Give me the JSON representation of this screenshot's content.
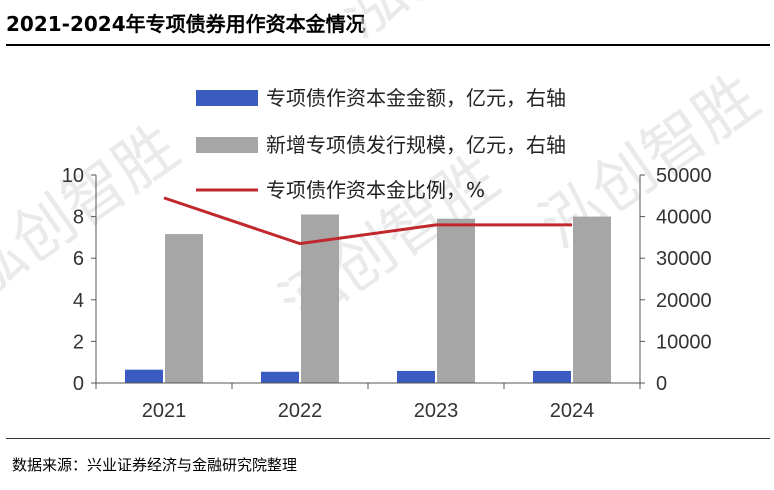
{
  "title": "2021-2024年专项债券用作资本金情况",
  "source": "数据来源：兴业证券经济与金融研究院整理",
  "watermark": "泓创智胜",
  "chart_data": {
    "type": "bar",
    "categories": [
      "2021",
      "2022",
      "2023",
      "2024"
    ],
    "left_axis": {
      "ylim": [
        0,
        10
      ],
      "ticks": [
        "0",
        "2",
        "4",
        "6",
        "8",
        "10"
      ]
    },
    "right_axis": {
      "ylim": [
        0,
        50000
      ],
      "ticks": [
        "0",
        "10000",
        "20000",
        "30000",
        "40000",
        "50000"
      ]
    },
    "series": [
      {
        "name": "专项债作资本金金额，亿元，右轴",
        "type": "bar",
        "axis": "right",
        "color": "#3a5bbf",
        "values": [
          3200,
          2700,
          2900,
          2900
        ]
      },
      {
        "name": "新增专项债发行规模，亿元，右轴",
        "type": "bar",
        "axis": "right",
        "color": "#a6a6a6",
        "values": [
          35800,
          40500,
          39500,
          40000
        ]
      },
      {
        "name": "专项债作资本金比例，%",
        "type": "line",
        "axis": "left",
        "color": "#c0282d",
        "values": [
          8.9,
          6.7,
          7.6,
          7.6
        ]
      }
    ],
    "legend_position": "top"
  }
}
